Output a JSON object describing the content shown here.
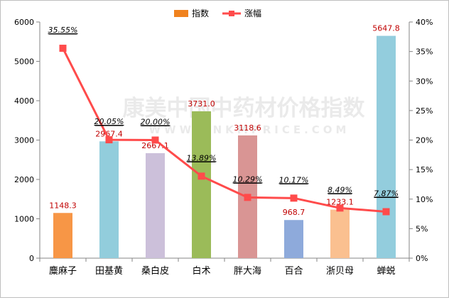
{
  "watermark": {
    "main": "康美中国中药材价格指数",
    "url": "WWW.CNKMPRICE.COM"
  },
  "chart_data": {
    "type": "bar",
    "categories": [
      "麋麻子",
      "田基黄",
      "桑白皮",
      "白术",
      "胖大海",
      "百合",
      "浙贝母",
      "蝉蜕"
    ],
    "series": [
      {
        "name": "指数",
        "type": "bar",
        "axis": "left",
        "values": [
          1148.3,
          2967.4,
          2667.1,
          3731.0,
          3118.6,
          968.7,
          1233.1,
          5647.8
        ],
        "value_labels": [
          "1148.3",
          "2967.4",
          "2667.1",
          "3731.0",
          "3118.6",
          "968.7",
          "1233.1",
          "5647.8"
        ],
        "colors": [
          "#f79646",
          "#92cddc",
          "#ccc0da",
          "#9bbb59",
          "#d99594",
          "#8eaadb",
          "#fac090",
          "#93cddd"
        ]
      },
      {
        "name": "涨幅",
        "type": "line",
        "axis": "right",
        "values": [
          35.55,
          20.05,
          20.0,
          13.89,
          10.29,
          10.17,
          8.49,
          7.87
        ],
        "value_labels": [
          "35.55%",
          "20.05%",
          "20.00%",
          "13.89%",
          "10.29%",
          "10.17%",
          "8.49%",
          "7.87%"
        ],
        "color": "#ff4b4b"
      }
    ],
    "left_axis": {
      "min": 0,
      "max": 6000,
      "ticks": [
        "0",
        "1000",
        "2000",
        "3000",
        "4000",
        "5000",
        "6000"
      ]
    },
    "right_axis": {
      "min": 0,
      "max": 40,
      "ticks": [
        "0%",
        "5%",
        "10%",
        "15%",
        "20%",
        "25%",
        "30%",
        "35%",
        "40%"
      ]
    },
    "legend": {
      "placement": "top-center",
      "entries": [
        {
          "label": "指数",
          "color": "#f0821e"
        },
        {
          "label": "涨幅",
          "color": "#ff4b4b"
        }
      ]
    },
    "grid": false,
    "colors": {
      "bar_value_label": "#c00000",
      "line_label": "#000000",
      "axis": "#868686"
    }
  }
}
